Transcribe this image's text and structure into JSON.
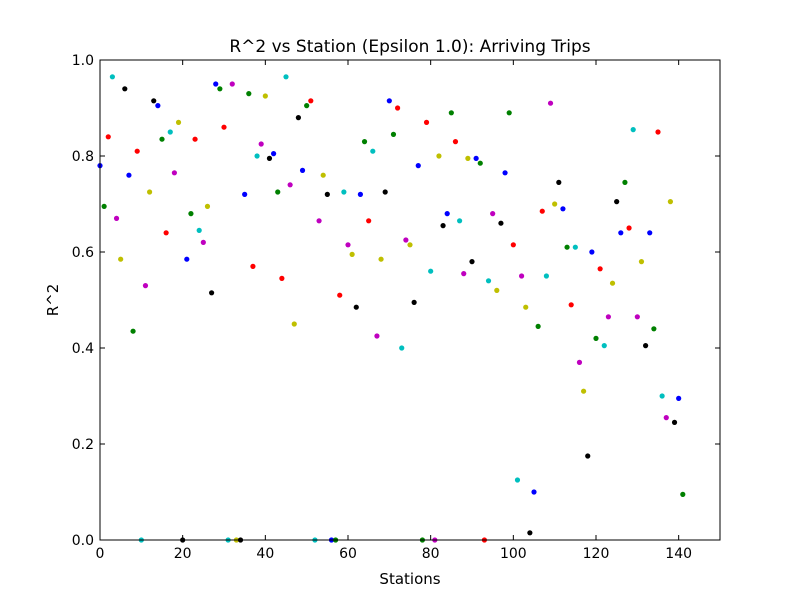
{
  "chart_data": {
    "type": "scatter",
    "title": "R^2 vs Station (Epsilon 1.0): Arriving Trips",
    "xlabel": "Stations",
    "ylabel": "R^2",
    "xlim": [
      0,
      150
    ],
    "ylim": [
      0,
      1.0
    ],
    "xticks": [
      0,
      20,
      40,
      60,
      80,
      100,
      120,
      140
    ],
    "yticks": [
      0.0,
      0.2,
      0.4,
      0.6,
      0.8,
      1.0
    ],
    "xtick_labels": [
      "0",
      "20",
      "40",
      "60",
      "80",
      "100",
      "120",
      "140"
    ],
    "ytick_labels": [
      "0.0",
      "0.2",
      "0.4",
      "0.6",
      "0.8",
      "1.0"
    ],
    "grid": false,
    "legend": "none",
    "palette": [
      "#0000ff",
      "#008000",
      "#ff0000",
      "#00bfbf",
      "#bf00bf",
      "#bfbf00",
      "#000000"
    ],
    "points": [
      [
        0,
        0.78
      ],
      [
        1,
        0.695
      ],
      [
        2,
        0.84
      ],
      [
        3,
        0.965
      ],
      [
        4,
        0.67
      ],
      [
        5,
        0.585
      ],
      [
        6,
        0.94
      ],
      [
        7,
        0.76
      ],
      [
        8,
        0.435
      ],
      [
        9,
        0.81
      ],
      [
        10,
        0.0
      ],
      [
        11,
        0.53
      ],
      [
        12,
        0.725
      ],
      [
        13,
        0.915
      ],
      [
        14,
        0.905
      ],
      [
        15,
        0.835
      ],
      [
        16,
        0.64
      ],
      [
        17,
        0.85
      ],
      [
        18,
        0.765
      ],
      [
        19,
        0.87
      ],
      [
        20,
        0.0
      ],
      [
        21,
        0.585
      ],
      [
        22,
        0.68
      ],
      [
        23,
        0.835
      ],
      [
        24,
        0.645
      ],
      [
        25,
        0.62
      ],
      [
        26,
        0.695
      ],
      [
        27,
        0.515
      ],
      [
        28,
        0.95
      ],
      [
        29,
        0.94
      ],
      [
        30,
        0.86
      ],
      [
        31,
        0.0
      ],
      [
        32,
        0.95
      ],
      [
        33,
        0.0
      ],
      [
        34,
        0.0
      ],
      [
        35,
        0.72
      ],
      [
        36,
        0.93
      ],
      [
        37,
        0.57
      ],
      [
        38,
        0.8
      ],
      [
        39,
        0.825
      ],
      [
        40,
        0.925
      ],
      [
        41,
        0.795
      ],
      [
        42,
        0.805
      ],
      [
        43,
        0.725
      ],
      [
        44,
        0.545
      ],
      [
        45,
        0.965
      ],
      [
        46,
        0.74
      ],
      [
        47,
        0.45
      ],
      [
        48,
        0.88
      ],
      [
        49,
        0.77
      ],
      [
        50,
        0.905
      ],
      [
        51,
        0.915
      ],
      [
        52,
        0.0
      ],
      [
        53,
        0.665
      ],
      [
        54,
        0.76
      ],
      [
        55,
        0.72
      ],
      [
        56,
        0.0
      ],
      [
        57,
        0.0
      ],
      [
        58,
        0.51
      ],
      [
        59,
        0.725
      ],
      [
        60,
        0.615
      ],
      [
        61,
        0.595
      ],
      [
        62,
        0.485
      ],
      [
        63,
        0.72
      ],
      [
        64,
        0.83
      ],
      [
        65,
        0.665
      ],
      [
        66,
        0.81
      ],
      [
        67,
        0.425
      ],
      [
        68,
        0.585
      ],
      [
        69,
        0.725
      ],
      [
        70,
        0.915
      ],
      [
        71,
        0.845
      ],
      [
        72,
        0.9
      ],
      [
        73,
        0.4
      ],
      [
        74,
        0.625
      ],
      [
        75,
        0.615
      ],
      [
        76,
        0.495
      ],
      [
        77,
        0.78
      ],
      [
        78,
        0.0
      ],
      [
        79,
        0.87
      ],
      [
        80,
        0.56
      ],
      [
        81,
        0.0
      ],
      [
        82,
        0.8
      ],
      [
        83,
        0.655
      ],
      [
        84,
        0.68
      ],
      [
        85,
        0.89
      ],
      [
        86,
        0.83
      ],
      [
        87,
        0.665
      ],
      [
        88,
        0.555
      ],
      [
        89,
        0.795
      ],
      [
        90,
        0.58
      ],
      [
        91,
        0.795
      ],
      [
        92,
        0.785
      ],
      [
        93,
        0.0
      ],
      [
        94,
        0.54
      ],
      [
        95,
        0.68
      ],
      [
        96,
        0.52
      ],
      [
        97,
        0.66
      ],
      [
        98,
        0.765
      ],
      [
        99,
        0.89
      ],
      [
        100,
        0.615
      ],
      [
        101,
        0.125
      ],
      [
        102,
        0.55
      ],
      [
        103,
        0.485
      ],
      [
        104,
        0.015
      ],
      [
        105,
        0.1
      ],
      [
        106,
        0.445
      ],
      [
        107,
        0.685
      ],
      [
        108,
        0.55
      ],
      [
        109,
        0.91
      ],
      [
        110,
        0.7
      ],
      [
        111,
        0.745
      ],
      [
        112,
        0.69
      ],
      [
        113,
        0.61
      ],
      [
        114,
        0.49
      ],
      [
        115,
        0.61
      ],
      [
        116,
        0.37
      ],
      [
        117,
        0.31
      ],
      [
        118,
        0.175
      ],
      [
        119,
        0.6
      ],
      [
        120,
        0.42
      ],
      [
        121,
        0.565
      ],
      [
        122,
        0.405
      ],
      [
        123,
        0.465
      ],
      [
        124,
        0.535
      ],
      [
        125,
        0.705
      ],
      [
        126,
        0.64
      ],
      [
        127,
        0.745
      ],
      [
        128,
        0.65
      ],
      [
        129,
        0.855
      ],
      [
        130,
        0.465
      ],
      [
        131,
        0.58
      ],
      [
        132,
        0.405
      ],
      [
        133,
        0.64
      ],
      [
        134,
        0.44
      ],
      [
        135,
        0.85
      ],
      [
        136,
        0.3
      ],
      [
        137,
        0.255
      ],
      [
        138,
        0.705
      ],
      [
        139,
        0.245
      ],
      [
        140,
        0.295
      ],
      [
        141,
        0.095
      ]
    ]
  }
}
